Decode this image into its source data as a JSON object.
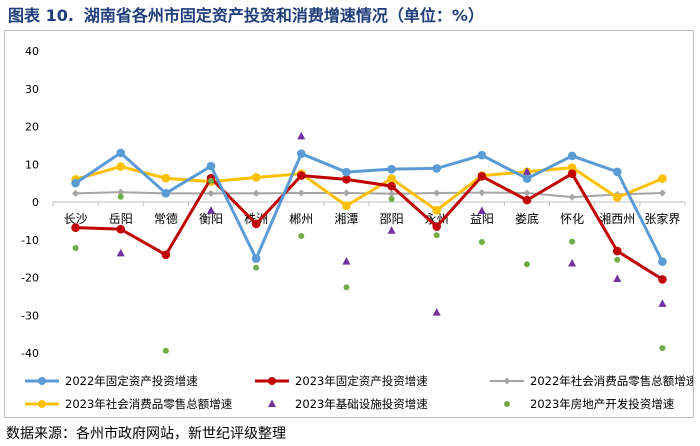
{
  "figure": {
    "label": "图表 10.",
    "title": "湖南省各州市固定资产投资和消费增速情况（单位：%）",
    "source": "数据来源：各州市政府网站，新世纪评级整理"
  },
  "chart_data": {
    "type": "line",
    "title": "湖南省各州市固定资产投资和消费增速情况（单位：%）",
    "xlabel": "",
    "ylabel": "%",
    "ylim": [
      -40,
      40
    ],
    "yticks": [
      -40,
      -30,
      -20,
      -10,
      0,
      10,
      20,
      30,
      40
    ],
    "grid": false,
    "legend_position": "bottom",
    "categories": [
      "长沙",
      "岳阳",
      "常德",
      "衡阳",
      "株洲",
      "郴州",
      "湘潭",
      "邵阳",
      "永州",
      "益阳",
      "娄底",
      "怀化",
      "湘西州",
      "张家界"
    ],
    "series": [
      {
        "name": "2022年固定资产投资增速",
        "style": "line",
        "color": "#5b9bd5",
        "values": [
          5.0,
          13.0,
          2.3,
          9.5,
          -15.0,
          12.8,
          7.9,
          8.7,
          8.9,
          12.4,
          6.2,
          12.2,
          8.0,
          -15.8
        ]
      },
      {
        "name": "2023年固定资产投资增速",
        "style": "line",
        "color": "#c00000",
        "values": [
          -6.8,
          -7.2,
          -14.0,
          6.3,
          -5.8,
          7.0,
          6.0,
          4.2,
          -6.5,
          6.8,
          0.5,
          7.5,
          -13.0,
          -20.5
        ]
      },
      {
        "name": "2022年社会消费品零售总额增速",
        "style": "line",
        "color": "#a5a5a5",
        "values": [
          2.3,
          2.6,
          2.3,
          2.3,
          2.3,
          2.4,
          2.4,
          2.2,
          2.4,
          2.5,
          2.4,
          1.3,
          2.0,
          2.4
        ]
      },
      {
        "name": "2023年社会消费品零售总额增速",
        "style": "line",
        "color": "#ffc000",
        "values": [
          6.0,
          9.4,
          6.3,
          5.4,
          6.5,
          7.5,
          -1.0,
          6.2,
          -2.2,
          7.0,
          8.0,
          9.1,
          1.2,
          6.2
        ]
      },
      {
        "name": "2023年基础设施投资增速",
        "style": "triangle",
        "color": "#7030a0",
        "values": [
          null,
          -13.6,
          null,
          -2.3,
          null,
          17.4,
          -15.8,
          -7.6,
          -29.3,
          -2.4,
          8.0,
          -16.3,
          -20.4,
          -27.0
        ]
      },
      {
        "name": "2023年房地产开发投资增速",
        "style": "dot",
        "color": "#70ad47",
        "values": [
          -12.2,
          1.4,
          -39.4,
          5.6,
          -17.4,
          -9.0,
          -22.6,
          0.8,
          -8.8,
          -10.6,
          -16.5,
          -10.5,
          -15.3,
          -38.7
        ]
      }
    ]
  }
}
